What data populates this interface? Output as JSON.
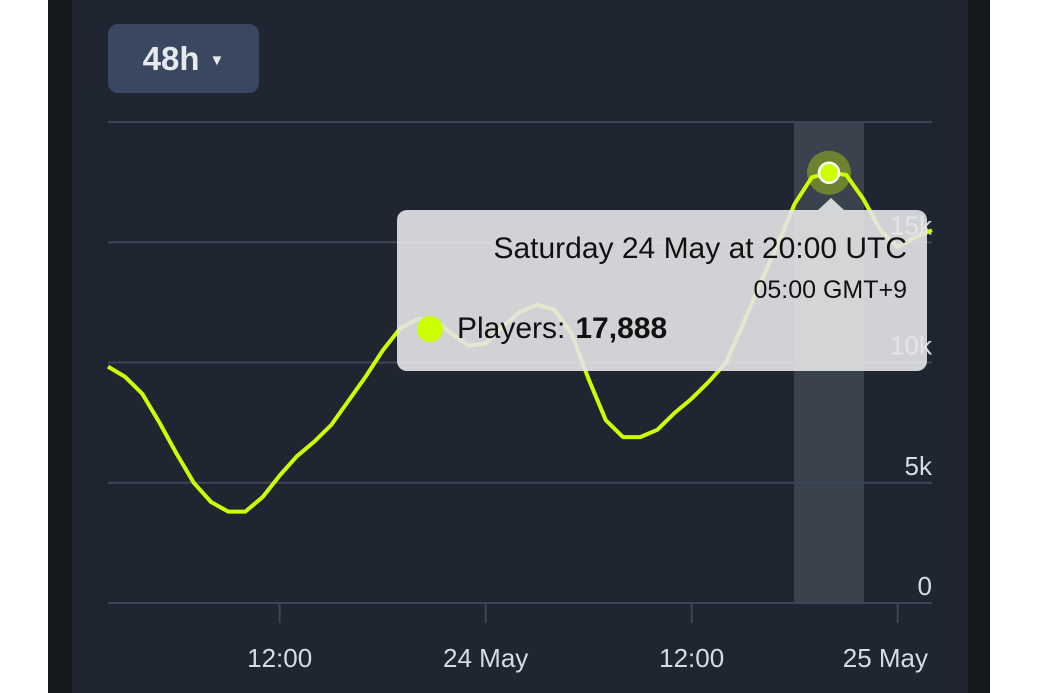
{
  "range_selector": {
    "label": "48h",
    "caret_icon": "triangle-down"
  },
  "tooltip": {
    "title": "Saturday 24 May at 20:00 UTC",
    "local_time": "05:00 GMT+9",
    "series_label": "Players:",
    "value": "17,888"
  },
  "colors": {
    "line": "#ccff00",
    "panel": "#1f2632",
    "grid": "#3d4656",
    "label": "#d7dbe2",
    "highlight": "#3a424e"
  },
  "chart_data": {
    "type": "line",
    "title": "",
    "xlabel": "",
    "ylabel": "",
    "ylim": [
      0,
      20000
    ],
    "grid": true,
    "y_ticks": [
      {
        "value": 0,
        "label": "0"
      },
      {
        "value": 5000,
        "label": "5k"
      },
      {
        "value": 10000,
        "label": "10k"
      },
      {
        "value": 15000,
        "label": "15k"
      },
      {
        "value": 20000,
        "label": ""
      }
    ],
    "x_ticks": [
      {
        "x": "23 May 12:00",
        "label": "12:00"
      },
      {
        "x": "24 May 00:00",
        "label": "24 May"
      },
      {
        "x": "24 May 12:00",
        "label": "12:00"
      },
      {
        "x": "25 May 00:00",
        "label": "25 May"
      }
    ],
    "highlighted": {
      "x": "24 May 20:00",
      "value": 17888
    },
    "x": [
      "23 May 02:00",
      "23 May 03:00",
      "23 May 04:00",
      "23 May 05:00",
      "23 May 06:00",
      "23 May 07:00",
      "23 May 08:00",
      "23 May 09:00",
      "23 May 10:00",
      "23 May 11:00",
      "23 May 12:00",
      "23 May 13:00",
      "23 May 14:00",
      "23 May 15:00",
      "23 May 16:00",
      "23 May 17:00",
      "23 May 18:00",
      "23 May 19:00",
      "23 May 20:00",
      "23 May 21:00",
      "23 May 22:00",
      "23 May 23:00",
      "24 May 00:00",
      "24 May 01:00",
      "24 May 02:00",
      "24 May 03:00",
      "24 May 04:00",
      "24 May 05:00",
      "24 May 06:00",
      "24 May 07:00",
      "24 May 08:00",
      "24 May 09:00",
      "24 May 10:00",
      "24 May 11:00",
      "24 May 12:00",
      "24 May 13:00",
      "24 May 14:00",
      "24 May 15:00",
      "24 May 16:00",
      "24 May 17:00",
      "24 May 18:00",
      "24 May 19:00",
      "24 May 20:00",
      "24 May 21:00",
      "24 May 22:00",
      "24 May 23:00",
      "25 May 00:00",
      "25 May 01:00",
      "25 May 02:00"
    ],
    "series": [
      {
        "name": "Players",
        "values": [
          9830,
          9400,
          8700,
          7500,
          6200,
          5000,
          4200,
          3800,
          3800,
          4400,
          5300,
          6100,
          6700,
          7400,
          8400,
          9400,
          10500,
          11400,
          11800,
          11800,
          11200,
          10700,
          10800,
          11500,
          12100,
          12400,
          12200,
          11200,
          9300,
          7600,
          6900,
          6900,
          7200,
          7900,
          8500,
          9200,
          10000,
          11600,
          13300,
          14900,
          16600,
          17700,
          17888,
          17800,
          16800,
          15500,
          14800,
          15200,
          15500
        ]
      }
    ]
  }
}
